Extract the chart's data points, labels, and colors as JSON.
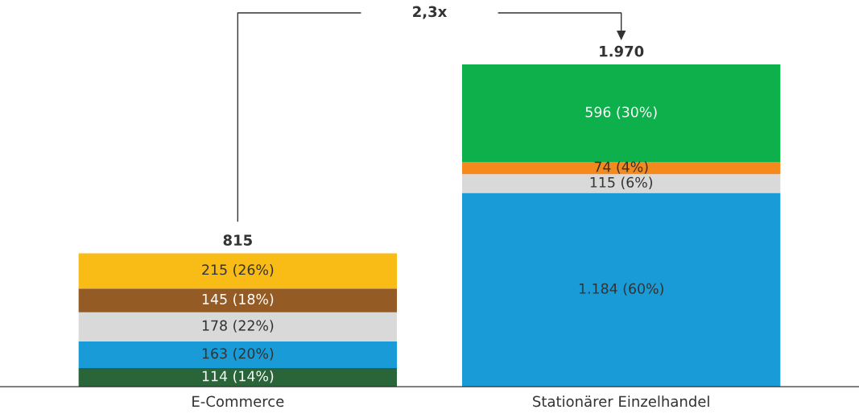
{
  "chart_data": {
    "type": "bar",
    "stacked": true,
    "categories": [
      "E-Commerce",
      "Stationärer Einzelhandel"
    ],
    "series": [
      {
        "color": "#2a6439",
        "values": [
          114,
          null
        ],
        "value_labels": [
          "114 (14%)",
          null
        ]
      },
      {
        "color": "#189bd6",
        "values": [
          163,
          1184
        ],
        "value_labels": [
          "163 (20%)",
          "1.184 (60%)"
        ]
      },
      {
        "color": "#d9d9d9",
        "values": [
          178,
          115
        ],
        "value_labels": [
          "178 (22%)",
          "115 (6%)"
        ]
      },
      {
        "color": "#955b24",
        "values": [
          145,
          null
        ],
        "value_labels": [
          "145 (18%)",
          null
        ]
      },
      {
        "color": "#f48a1e",
        "values": [
          null,
          74
        ],
        "value_labels": [
          null,
          "74 (4%)"
        ]
      },
      {
        "color": "#f9bb15",
        "values": [
          215,
          null
        ],
        "value_labels": [
          "215 (26%)",
          null
        ]
      },
      {
        "color": "#0db04b",
        "values": [
          null,
          596
        ],
        "value_labels": [
          null,
          "596 (30%)"
        ]
      }
    ],
    "totals": [
      "815",
      "1.970"
    ],
    "annotations": [
      "2,3x"
    ],
    "grid": false,
    "legend": false
  }
}
